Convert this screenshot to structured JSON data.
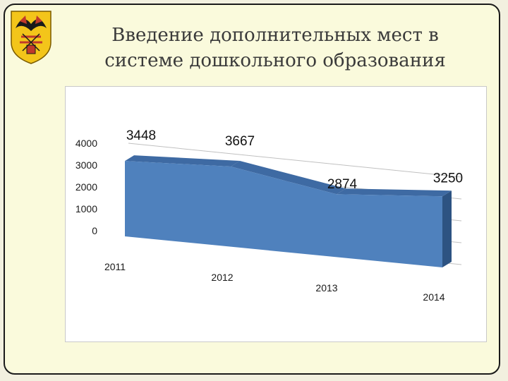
{
  "slide": {
    "title_line1": "Введение дополнительных мест в",
    "title_line2": "системе дошкольного образования"
  },
  "emblem": {
    "icon": "coat-of-arms-icon"
  },
  "colors": {
    "area_front": "#4f81bd",
    "area_top": "#3e6aa3",
    "area_side": "#2d5382",
    "grid": "#c0c0c0"
  },
  "chart_data": {
    "type": "area",
    "categories": [
      "2011",
      "2012",
      "2013",
      "2014"
    ],
    "values": [
      3448,
      3667,
      2874,
      3250
    ],
    "data_labels": [
      "3448",
      "3667",
      "2874",
      "3250"
    ],
    "y_ticks": [
      "0",
      "1000",
      "2000",
      "3000",
      "4000"
    ],
    "ylim": [
      0,
      4000
    ],
    "grid": true,
    "legend": "none"
  }
}
